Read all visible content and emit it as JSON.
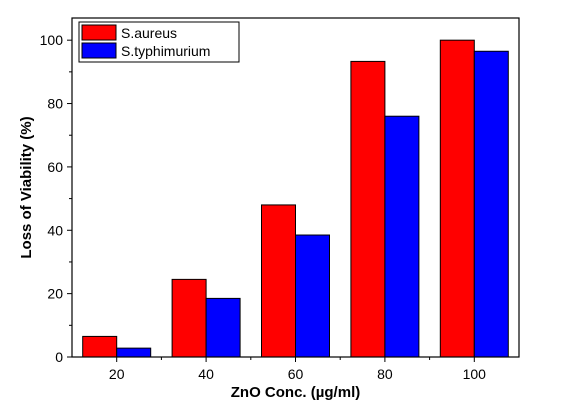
{
  "chart_data": {
    "type": "bar",
    "xlabel": "ZnO Conc. (µg/ml)",
    "ylabel": "Loss of Viability (%)",
    "categories": [
      "20",
      "40",
      "60",
      "80",
      "100"
    ],
    "ylim": [
      0,
      107
    ],
    "yticks": [
      "0",
      "20",
      "40",
      "60",
      "80",
      "100"
    ],
    "series": [
      {
        "name": "S.aureus",
        "color": "#ff0000",
        "values": [
          6.5,
          24.5,
          48,
          93.3,
          100
        ]
      },
      {
        "name": "S.typhimurium",
        "color": "#0000ff",
        "values": [
          2.8,
          18.5,
          38.5,
          76,
          96.5
        ]
      }
    ],
    "legend_position": "top-left",
    "grid": false
  }
}
